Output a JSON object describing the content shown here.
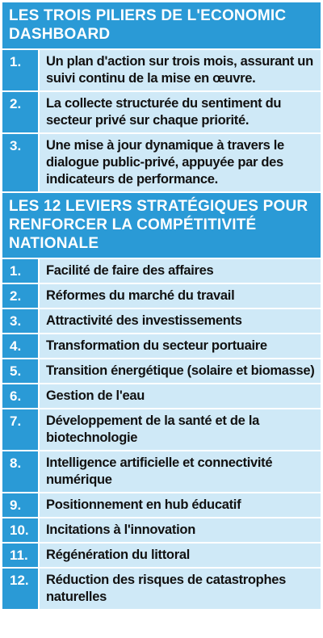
{
  "section1": {
    "title": "LES TROIS PILIERS DE L'ECONOMIC DASHBOARD",
    "items": [
      {
        "num": "1.",
        "text": "Un plan d'action sur trois mois, assurant un suivi continu de la mise en œuvre."
      },
      {
        "num": "2.",
        "text": "La collecte structurée du sentiment du secteur privé sur chaque priorité."
      },
      {
        "num": "3.",
        "text": "Une mise à jour dynamique à travers le dialogue public-privé, appuyée par des indicateurs de performance."
      }
    ]
  },
  "section2": {
    "title": "LES 12 LEVIERS STRATÉGIQUES POUR RENFORCER LA COMPÉTITIVITÉ NATIONALE",
    "items": [
      {
        "num": "1.",
        "text": "Facilité de faire des affaires"
      },
      {
        "num": "2.",
        "text": "Réformes du marché du travail"
      },
      {
        "num": "3.",
        "text": "Attractivité des investissements"
      },
      {
        "num": "4.",
        "text": "Transformation du secteur portuaire"
      },
      {
        "num": "5.",
        "text": "Transition énergétique (solaire et biomasse)"
      },
      {
        "num": "6.",
        "text": "Gestion de l'eau"
      },
      {
        "num": "7.",
        "text": "Développement de la santé et de la biotechnologie"
      },
      {
        "num": "8.",
        "text": "Intelligence artificielle et connectivité numérique"
      },
      {
        "num": "9.",
        "text": "Positionnement en hub éducatif"
      },
      {
        "num": "10.",
        "text": "Incitations à l'innovation"
      },
      {
        "num": "11.",
        "text": "Régénération du littoral"
      },
      {
        "num": "12.",
        "text": "Réduction des risques de catastrophes naturelles"
      }
    ]
  },
  "colors": {
    "header_blue": "#2a9ad6",
    "row_light_blue": "#cfe9f7"
  }
}
